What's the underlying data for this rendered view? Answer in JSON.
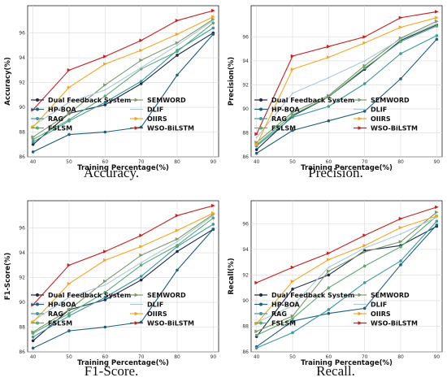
{
  "figure": {
    "captions": [
      "Accuracy.",
      "Precision.",
      "F1-Score.",
      "Recall."
    ]
  },
  "chart_data": [
    {
      "type": "line",
      "caption": "Accuracy.",
      "xlabel": "Training Percentage(%)",
      "ylabel": "Accuracy(%)",
      "x": [
        40,
        50,
        60,
        70,
        80,
        90
      ],
      "x_tick_labels": [
        "40",
        "50",
        "60",
        "70",
        "80",
        "90"
      ],
      "ylim": [
        86,
        98
      ],
      "y_ticks": [
        86,
        88,
        90,
        92,
        94,
        96
      ],
      "grid": true,
      "legend": "bottom",
      "series": [
        {
          "name": "Dual Feedback System",
          "color": "#1a2a4a",
          "marker": "circle",
          "values": [
            87.0,
            89.5,
            90.2,
            91.9,
            94.2,
            96.0
          ]
        },
        {
          "name": "HP-BOA",
          "color": "#1f5f80",
          "marker": "circle",
          "values": [
            86.4,
            87.8,
            88.0,
            88.4,
            92.6,
            95.9
          ]
        },
        {
          "name": "RAG",
          "color": "#3c9aa0",
          "marker": "circle",
          "values": [
            87.2,
            88.9,
            90.4,
            92.1,
            94.6,
            96.4
          ]
        },
        {
          "name": "FSLSM",
          "color": "#5aaa70",
          "marker": "circle",
          "values": [
            87.4,
            89.0,
            90.9,
            93.1,
            94.5,
            96.8
          ]
        },
        {
          "name": "SEMWORD",
          "color": "#7a9a6a",
          "marker": "triangle",
          "values": [
            87.6,
            89.5,
            91.8,
            93.8,
            95.2,
            97.1
          ]
        },
        {
          "name": "DLIF",
          "color": "#aac8dc",
          "marker": "none",
          "values": [
            88.5,
            90.4,
            91.4,
            93.2,
            95.0,
            97.0
          ]
        },
        {
          "name": "OIIRS",
          "color": "#f4a623",
          "marker": "triangle",
          "values": [
            88.4,
            91.6,
            93.5,
            94.6,
            95.9,
            97.3
          ]
        },
        {
          "name": "WSO-BiLSTM",
          "color": "#c81e1e",
          "marker": "triangle",
          "values": [
            89.8,
            93.0,
            94.1,
            95.4,
            97.0,
            97.8
          ]
        }
      ]
    },
    {
      "type": "line",
      "caption": "Precision.",
      "xlabel": "Training Percentage(%)",
      "ylabel": "Precision(%)",
      "x": [
        40,
        50,
        60,
        70,
        80,
        90
      ],
      "x_tick_labels": [
        "40",
        "50",
        "60",
        "70",
        "80",
        "90"
      ],
      "ylim": [
        86,
        98
      ],
      "y_ticks": [
        86,
        88,
        90,
        92,
        94,
        96
      ],
      "grid": true,
      "legend": "bottom",
      "series": [
        {
          "name": "Dual Feedback System",
          "color": "#1a2a4a",
          "marker": "circle",
          "values": [
            86.6,
            89.4,
            91.0,
            93.3,
            95.7,
            97.0
          ]
        },
        {
          "name": "HP-BOA",
          "color": "#1f5f80",
          "marker": "circle",
          "values": [
            86.3,
            88.2,
            89.0,
            89.8,
            92.5,
            95.8
          ]
        },
        {
          "name": "RAG",
          "color": "#3c9aa0",
          "marker": "circle",
          "values": [
            86.9,
            89.3,
            90.2,
            92.1,
            94.6,
            96.1
          ]
        },
        {
          "name": "FSLSM",
          "color": "#5aaa70",
          "marker": "circle",
          "values": [
            87.0,
            89.5,
            91.0,
            93.4,
            95.6,
            96.9
          ]
        },
        {
          "name": "SEMWORD",
          "color": "#7a9a6a",
          "marker": "triangle",
          "values": [
            87.2,
            89.7,
            91.1,
            93.6,
            95.9,
            97.3
          ]
        },
        {
          "name": "DLIF",
          "color": "#aac8dc",
          "marker": "none",
          "values": [
            87.6,
            91.3,
            92.6,
            94.0,
            95.8,
            97.1
          ]
        },
        {
          "name": "OIIRS",
          "color": "#f4a623",
          "marker": "triangle",
          "values": [
            87.0,
            93.3,
            94.3,
            95.5,
            96.8,
            97.6
          ]
        },
        {
          "name": "WSO-BiLSTM",
          "color": "#c81e1e",
          "marker": "triangle",
          "values": [
            87.9,
            94.4,
            95.2,
            96.0,
            97.6,
            98.1
          ]
        }
      ]
    },
    {
      "type": "line",
      "caption": "F1-Score.",
      "xlabel": "Training Percentage(%)",
      "ylabel": "F1-Score(%)",
      "x": [
        40,
        50,
        60,
        70,
        80,
        90
      ],
      "x_tick_labels": [
        "40",
        "50",
        "60",
        "70",
        "80",
        "90"
      ],
      "ylim": [
        86,
        98
      ],
      "y_ticks": [
        86,
        88,
        90,
        92,
        94,
        96
      ],
      "grid": true,
      "legend": "bottom",
      "series": [
        {
          "name": "Dual Feedback System",
          "color": "#1a2a4a",
          "marker": "circle",
          "values": [
            86.9,
            89.4,
            90.2,
            91.8,
            94.1,
            95.9
          ]
        },
        {
          "name": "HP-BOA",
          "color": "#1f5f80",
          "marker": "circle",
          "values": [
            86.3,
            87.7,
            88.0,
            88.4,
            92.6,
            95.9
          ]
        },
        {
          "name": "RAG",
          "color": "#3c9aa0",
          "marker": "circle",
          "values": [
            87.2,
            88.9,
            90.4,
            92.1,
            94.5,
            96.3
          ]
        },
        {
          "name": "FSLSM",
          "color": "#5aaa70",
          "marker": "circle",
          "values": [
            87.5,
            89.1,
            90.8,
            93.0,
            94.6,
            96.8
          ]
        },
        {
          "name": "SEMWORD",
          "color": "#7a9a6a",
          "marker": "triangle",
          "values": [
            87.6,
            89.4,
            91.7,
            93.8,
            95.1,
            97.1
          ]
        },
        {
          "name": "DLIF",
          "color": "#aac8dc",
          "marker": "none",
          "values": [
            88.5,
            90.4,
            91.4,
            93.2,
            94.9,
            97.0
          ]
        },
        {
          "name": "OIIRS",
          "color": "#f4a623",
          "marker": "triangle",
          "values": [
            88.4,
            91.5,
            93.4,
            94.5,
            95.8,
            97.2
          ]
        },
        {
          "name": "WSO-BiLSTM",
          "color": "#c81e1e",
          "marker": "triangle",
          "values": [
            89.8,
            93.0,
            94.1,
            95.4,
            97.0,
            97.8
          ]
        }
      ]
    },
    {
      "type": "line",
      "caption": "Recall.",
      "xlabel": "Training Percentage(%)",
      "ylabel": "Recall(%)",
      "x": [
        40,
        50,
        60,
        70,
        80,
        90
      ],
      "x_tick_labels": [
        "40",
        "50",
        "60",
        "70",
        "80",
        "90"
      ],
      "ylim": [
        86,
        98
      ],
      "y_ticks": [
        86,
        88,
        90,
        92,
        94,
        96
      ],
      "grid": true,
      "legend": "bottom",
      "series": [
        {
          "name": "Dual Feedback System",
          "color": "#1a2a4a",
          "marker": "circle",
          "values": [
            87.2,
            90.9,
            92.0,
            93.9,
            94.3,
            95.8
          ]
        },
        {
          "name": "HP-BOA",
          "color": "#1f5f80",
          "marker": "circle",
          "values": [
            86.4,
            88.4,
            89.0,
            89.4,
            92.8,
            95.9
          ]
        },
        {
          "name": "RAG",
          "color": "#3c9aa0",
          "marker": "circle",
          "values": [
            86.3,
            87.5,
            89.3,
            91.4,
            93.1,
            96.2
          ]
        },
        {
          "name": "FSLSM",
          "color": "#5aaa70",
          "marker": "circle",
          "values": [
            87.3,
            88.6,
            91.0,
            92.7,
            94.2,
            96.6
          ]
        },
        {
          "name": "SEMWORD",
          "color": "#7a9a6a",
          "marker": "triangle",
          "values": [
            87.6,
            88.8,
            92.3,
            93.8,
            94.6,
            96.9
          ]
        },
        {
          "name": "DLIF",
          "color": "#aac8dc",
          "marker": "none",
          "values": [
            88.3,
            89.6,
            92.6,
            94.1,
            95.2,
            96.5
          ]
        },
        {
          "name": "OIIRS",
          "color": "#f4a623",
          "marker": "triangle",
          "values": [
            88.2,
            91.5,
            93.2,
            94.3,
            95.7,
            96.6
          ]
        },
        {
          "name": "WSO-BiLSTM",
          "color": "#c81e1e",
          "marker": "triangle",
          "values": [
            91.4,
            92.6,
            93.7,
            95.1,
            96.4,
            97.3
          ]
        }
      ]
    }
  ]
}
